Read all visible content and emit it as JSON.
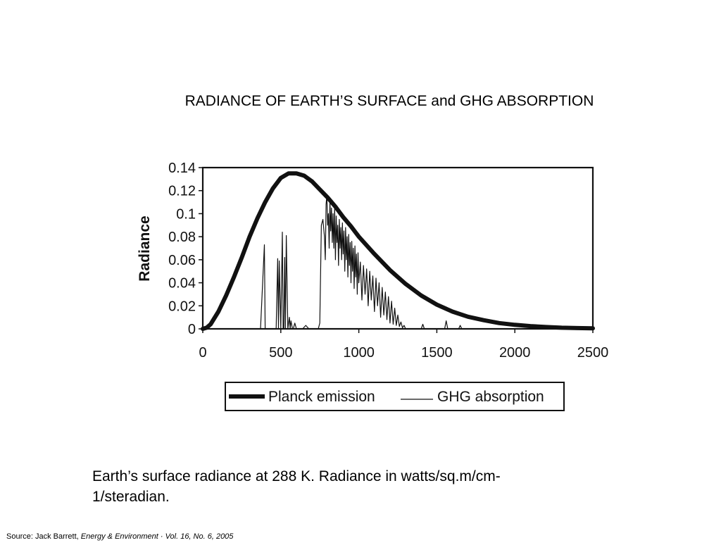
{
  "slide": {
    "title": "RADIANCE OF EARTH’S SURFACE and GHG ABSORPTION",
    "caption": "Earth’s surface radiance at 288 K. Radiance in watts/sq.m/cm-1/steradian.",
    "source_prefix": "Source: Jack Barrett, ",
    "source_journal": "Energy & Environment · Vol. 16, No. 6, 2005"
  },
  "chart_data": {
    "type": "line",
    "title": "",
    "xlabel": "",
    "ylabel": "Radiance",
    "xlim": [
      0,
      2500
    ],
    "ylim": [
      0,
      0.14
    ],
    "x_ticks": [
      0,
      500,
      1000,
      1500,
      2000,
      2500
    ],
    "x_tick_labels": [
      "0",
      "500",
      "1000",
      "1500",
      "2000",
      "2500"
    ],
    "y_ticks": [
      0,
      0.02,
      0.04,
      0.06,
      0.08,
      0.1,
      0.12,
      0.14
    ],
    "y_tick_labels": [
      "0",
      "0.02",
      "0.04",
      "0.06",
      "0.08",
      "0.1",
      "0.12",
      "0.14"
    ],
    "grid": false,
    "legend_position": "bottom",
    "series": [
      {
        "name": "Planck emission",
        "style": "thick",
        "color": "#111111",
        "x": [
          0,
          25,
          50,
          100,
          150,
          200,
          250,
          300,
          350,
          400,
          450,
          500,
          550,
          600,
          650,
          700,
          750,
          800,
          850,
          900,
          950,
          1000,
          1100,
          1200,
          1300,
          1400,
          1500,
          1600,
          1700,
          1800,
          1900,
          2000,
          2100,
          2200,
          2300,
          2400,
          2500
        ],
        "y": [
          0,
          0.001,
          0.004,
          0.015,
          0.029,
          0.045,
          0.062,
          0.08,
          0.096,
          0.11,
          0.122,
          0.131,
          0.135,
          0.135,
          0.133,
          0.128,
          0.121,
          0.114,
          0.106,
          0.097,
          0.089,
          0.08,
          0.065,
          0.051,
          0.039,
          0.029,
          0.021,
          0.015,
          0.0105,
          0.0075,
          0.005,
          0.0035,
          0.0024,
          0.0016,
          0.001,
          0.0007,
          0.0005
        ]
      },
      {
        "name": "GHG absorption",
        "style": "thin",
        "color": "#111111",
        "x": [
          370,
          395,
          400,
          405,
          470,
          480,
          485,
          490,
          500,
          510,
          515,
          520,
          525,
          530,
          535,
          545,
          555,
          560,
          565,
          575,
          580,
          590,
          600,
          620,
          640,
          660,
          680,
          700,
          720,
          740,
          750,
          760,
          770,
          780,
          785,
          790,
          795,
          800,
          805,
          810,
          815,
          820,
          825,
          830,
          835,
          840,
          845,
          850,
          855,
          860,
          865,
          870,
          875,
          880,
          885,
          890,
          895,
          900,
          905,
          910,
          915,
          920,
          925,
          930,
          935,
          940,
          945,
          950,
          955,
          960,
          965,
          970,
          975,
          980,
          985,
          990,
          995,
          1000,
          1010,
          1020,
          1030,
          1040,
          1050,
          1060,
          1070,
          1080,
          1090,
          1100,
          1110,
          1120,
          1130,
          1140,
          1150,
          1160,
          1170,
          1180,
          1190,
          1200,
          1210,
          1220,
          1230,
          1240,
          1250,
          1260,
          1270,
          1280,
          1290,
          1300,
          1400,
          1410,
          1420,
          1500,
          1550,
          1560,
          1570,
          1600,
          1640,
          1650,
          1660,
          1700,
          2500
        ],
        "y": [
          0,
          0.073,
          0,
          0,
          0,
          0.061,
          0,
          0.059,
          0,
          0.084,
          0,
          0,
          0.062,
          0,
          0.081,
          0,
          0.01,
          0,
          0.007,
          0,
          0,
          0.005,
          0,
          0,
          0,
          0.003,
          0,
          0,
          0,
          0,
          0.005,
          0.09,
          0.095,
          0.08,
          0.06,
          0.108,
          0.116,
          0.09,
          0.1,
          0.07,
          0.112,
          0.085,
          0.105,
          0.075,
          0.1,
          0.07,
          0.105,
          0.06,
          0.098,
          0.075,
          0.09,
          0.055,
          0.095,
          0.07,
          0.088,
          0.06,
          0.092,
          0.065,
          0.085,
          0.05,
          0.088,
          0.06,
          0.08,
          0.045,
          0.082,
          0.055,
          0.075,
          0.04,
          0.076,
          0.05,
          0.07,
          0.035,
          0.072,
          0.045,
          0.065,
          0.03,
          0.066,
          0.04,
          0.058,
          0.025,
          0.055,
          0.03,
          0.052,
          0.02,
          0.05,
          0.025,
          0.046,
          0.015,
          0.044,
          0.02,
          0.04,
          0.01,
          0.036,
          0.012,
          0.032,
          0.008,
          0.028,
          0.005,
          0.024,
          0.004,
          0.018,
          0.003,
          0.012,
          0.002,
          0.006,
          0.001,
          0.003,
          0,
          0,
          0.004,
          0,
          0,
          0,
          0.007,
          0,
          0,
          0,
          0.003,
          0,
          0,
          0
        ]
      }
    ]
  }
}
